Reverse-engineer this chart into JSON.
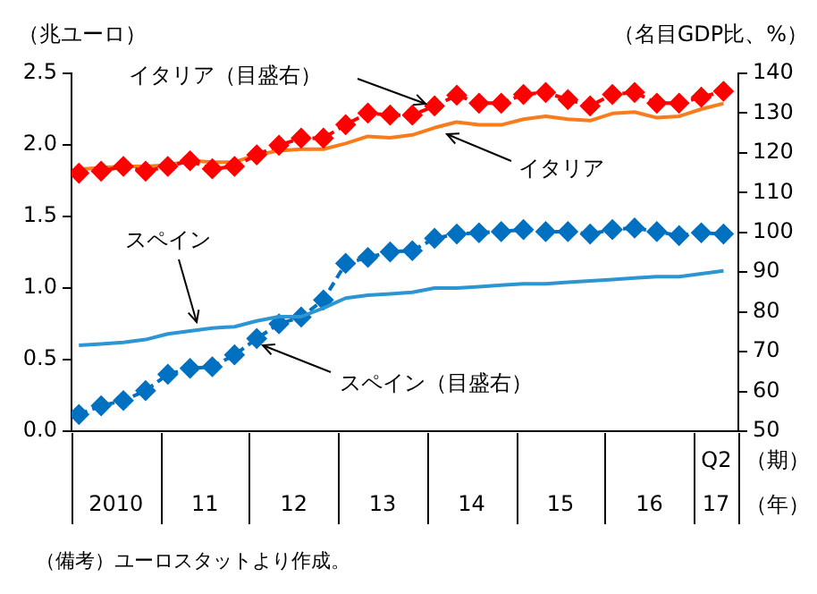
{
  "chart_data": {
    "type": "line",
    "ylabel": "（兆ユーロ）",
    "y2label": "（名目GDP比、%）",
    "xlabel": "（年）",
    "x": [
      "2010-02",
      "2010-05",
      "2010-08",
      "2010-11",
      "2011-02",
      "2011-05",
      "2011-08",
      "2011-11",
      "2012-02",
      "2012-05",
      "2012-08",
      "2012-11",
      "2013-02",
      "2013-05",
      "2013-08",
      "2013-11",
      "2014-02",
      "2014-05",
      "2014-08",
      "2014-11",
      "2015-02",
      "2015-05",
      "2015-08",
      "2015-11",
      "2016-02",
      "2016-05",
      "2016-08",
      "2016-11",
      "2017-02",
      "2017-05"
    ],
    "xlim": [
      "2010-01",
      "2017-07"
    ],
    "xticks": [
      {
        "value": "2010-07",
        "label": "2010"
      },
      {
        "value": "2011-07",
        "label": "11"
      },
      {
        "value": "2012-07",
        "label": "12"
      },
      {
        "value": "2013-07",
        "label": "13"
      },
      {
        "value": "2014-07",
        "label": "14"
      },
      {
        "value": "2015-07",
        "label": "15"
      },
      {
        "value": "2016-07",
        "label": "16"
      },
      {
        "value": "2017-04",
        "label": "17"
      }
    ],
    "ylim": [
      0,
      2.5
    ],
    "yticks": [
      {
        "value": 0,
        "label": "0.0"
      },
      {
        "value": 0.5,
        "label": "0.5"
      },
      {
        "value": 1,
        "label": "1.0"
      },
      {
        "value": 1.5,
        "label": "1.5"
      },
      {
        "value": 2,
        "label": "2.0"
      },
      {
        "value": 2.5,
        "label": "2.5"
      }
    ],
    "y2lim": [
      50,
      140
    ],
    "y2ticks": [
      50,
      60,
      70,
      80,
      90,
      100,
      110,
      120,
      130,
      140
    ],
    "grid": false,
    "legend": false,
    "series": [
      {
        "name": "イタリア（目盛右）",
        "color": "#ff0000",
        "axis": "y2",
        "marker": "diamond",
        "line_style": "dashed",
        "values": [
          114.9,
          115.4,
          116.6,
          115.4,
          116.6,
          118,
          116,
          116.6,
          119.5,
          121.9,
          123.7,
          123.7,
          127.1,
          130,
          129.5,
          129.5,
          131.8,
          134.5,
          132.5,
          132.5,
          134.7,
          135.2,
          133.4,
          131.8,
          134.7,
          135.2,
          132.5,
          132.5,
          134,
          135.5
        ]
      },
      {
        "name": "イタリア",
        "color": "#f97c1c",
        "marker": "none",
        "line_style": "solid",
        "values": [
          1.83,
          1.84,
          1.85,
          1.85,
          1.86,
          1.89,
          1.88,
          1.88,
          1.93,
          1.96,
          1.97,
          1.97,
          2.01,
          2.06,
          2.05,
          2.07,
          2.12,
          2.16,
          2.14,
          2.14,
          2.18,
          2.2,
          2.18,
          2.17,
          2.22,
          2.23,
          2.19,
          2.2,
          2.25,
          2.29
        ]
      },
      {
        "name": "スペイン",
        "color": "#2e95d3",
        "marker": "none",
        "line_style": "solid",
        "values": [
          0.6,
          0.61,
          0.62,
          0.64,
          0.68,
          0.7,
          0.72,
          0.73,
          0.77,
          0.8,
          0.8,
          0.86,
          0.93,
          0.95,
          0.96,
          0.97,
          1,
          1,
          1.01,
          1.02,
          1.03,
          1.03,
          1.04,
          1.05,
          1.06,
          1.07,
          1.08,
          1.08,
          1.1,
          1.12
        ]
      },
      {
        "name": "スペイン（目盛右）",
        "color": "#0070c0",
        "axis": "y2",
        "marker": "diamond",
        "line_style": "dashed",
        "values": [
          54.2,
          56.4,
          57.7,
          60.2,
          64.3,
          65.8,
          66.2,
          69.2,
          73.3,
          77,
          78.7,
          83,
          92.2,
          93.7,
          95.1,
          95.4,
          98.5,
          99.6,
          99.9,
          100.2,
          100.7,
          100.2,
          100.2,
          99.6,
          100.7,
          101.1,
          100.2,
          99.2,
          99.9,
          99.6
        ]
      }
    ],
    "annotations": [
      "（備考）ユーロスタットより作成。",
      "Q2",
      "（期）"
    ]
  }
}
